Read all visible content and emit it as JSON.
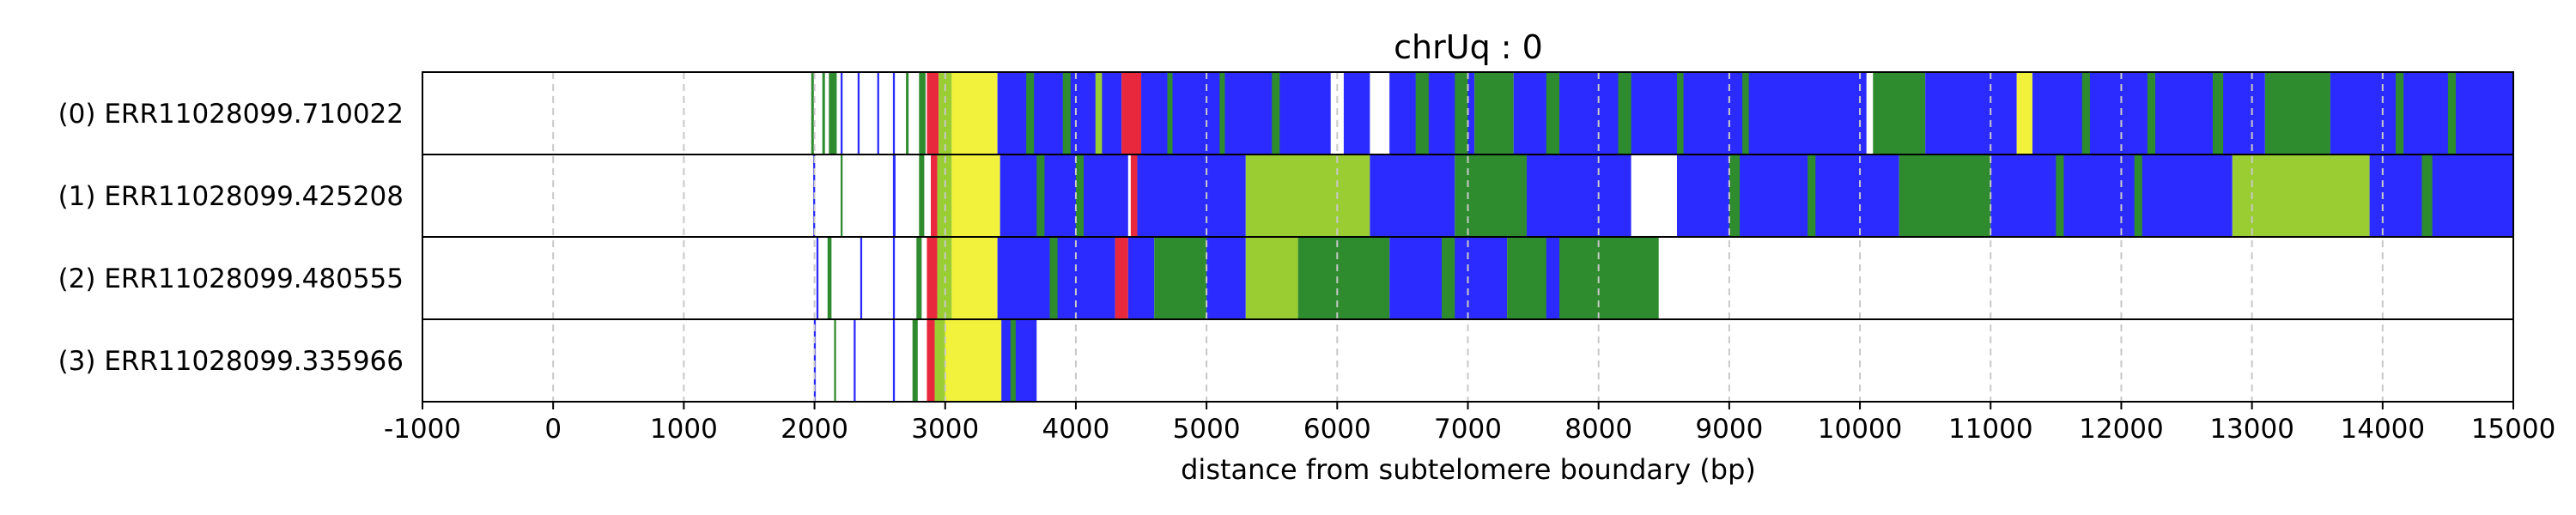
{
  "chart_data": {
    "type": "heatmap",
    "title": "chrUq : 0",
    "xlabel": "distance from subtelomere boundary (bp)",
    "xlim": [
      -1000,
      15000
    ],
    "xticks": [
      -1000,
      0,
      1000,
      2000,
      3000,
      4000,
      5000,
      6000,
      7000,
      8000,
      9000,
      10000,
      11000,
      12000,
      13000,
      14000,
      15000
    ],
    "xtick_labels": [
      "-1000",
      "0",
      "1000",
      "2000",
      "3000",
      "4000",
      "5000",
      "6000",
      "7000",
      "8000",
      "9000",
      "10000",
      "11000",
      "12000",
      "13000",
      "14000",
      "15000"
    ],
    "grid": "vertical dashed",
    "colors": {
      "blue": "#2b2bff",
      "green": "#2e8b2e",
      "yellow": "#f2f23c",
      "yellowgreen": "#9acd32",
      "red": "#e8283c",
      "white": "#ffffff",
      "grid": "#c8c8c8"
    },
    "rows": [
      {
        "label": "(0) ERR11028099.710022",
        "extent": [
          1970,
          15000
        ],
        "segments": [
          [
            1975,
            1995,
            "green"
          ],
          [
            2060,
            2080,
            "green"
          ],
          [
            2110,
            2170,
            "green"
          ],
          [
            2200,
            2215,
            "blue"
          ],
          [
            2330,
            2345,
            "blue"
          ],
          [
            2480,
            2495,
            "blue"
          ],
          [
            2600,
            2615,
            "blue"
          ],
          [
            2700,
            2720,
            "green"
          ],
          [
            2800,
            2850,
            "green"
          ],
          [
            2860,
            2950,
            "red"
          ],
          [
            2950,
            3050,
            "yellowgreen"
          ],
          [
            3050,
            3400,
            "yellow"
          ],
          [
            3400,
            4350,
            "blue"
          ],
          [
            3620,
            3680,
            "green"
          ],
          [
            3900,
            3960,
            "green"
          ],
          [
            4150,
            4200,
            "yellowgreen"
          ],
          [
            4350,
            4500,
            "red"
          ],
          [
            4500,
            5950,
            "blue"
          ],
          [
            4700,
            4740,
            "green"
          ],
          [
            5100,
            5140,
            "green"
          ],
          [
            5500,
            5560,
            "green"
          ],
          [
            6050,
            6250,
            "blue"
          ],
          [
            6400,
            7050,
            "blue"
          ],
          [
            6600,
            6700,
            "green"
          ],
          [
            6900,
            7000,
            "green"
          ],
          [
            7050,
            7350,
            "green"
          ],
          [
            7350,
            10050,
            "blue"
          ],
          [
            7600,
            7700,
            "green"
          ],
          [
            8150,
            8250,
            "green"
          ],
          [
            8600,
            8650,
            "green"
          ],
          [
            9100,
            9150,
            "green"
          ],
          [
            10100,
            10500,
            "green"
          ],
          [
            10500,
            11200,
            "blue"
          ],
          [
            11200,
            11320,
            "yellow"
          ],
          [
            11320,
            13100,
            "blue"
          ],
          [
            11700,
            11760,
            "green"
          ],
          [
            12200,
            12260,
            "green"
          ],
          [
            12700,
            12780,
            "green"
          ],
          [
            13100,
            13600,
            "green"
          ],
          [
            13600,
            15000,
            "blue"
          ],
          [
            14100,
            14160,
            "green"
          ],
          [
            14500,
            14560,
            "green"
          ]
        ]
      },
      {
        "label": "(1) ERR11028099.425208",
        "extent": [
          1980,
          15000
        ],
        "segments": [
          [
            1990,
            2005,
            "blue"
          ],
          [
            2200,
            2215,
            "green"
          ],
          [
            2600,
            2620,
            "blue"
          ],
          [
            2800,
            2840,
            "green"
          ],
          [
            2890,
            2940,
            "red"
          ],
          [
            2940,
            3050,
            "yellowgreen"
          ],
          [
            3050,
            3420,
            "yellow"
          ],
          [
            3420,
            4400,
            "blue"
          ],
          [
            3700,
            3760,
            "green"
          ],
          [
            4000,
            4060,
            "green"
          ],
          [
            4420,
            4470,
            "red"
          ],
          [
            4470,
            5300,
            "blue"
          ],
          [
            5300,
            6250,
            "yellowgreen"
          ],
          [
            6250,
            6900,
            "blue"
          ],
          [
            6900,
            7450,
            "green"
          ],
          [
            7450,
            8250,
            "blue"
          ],
          [
            8250,
            8600,
            "white"
          ],
          [
            8600,
            10300,
            "blue"
          ],
          [
            9000,
            9080,
            "green"
          ],
          [
            9600,
            9660,
            "green"
          ],
          [
            10300,
            11000,
            "green"
          ],
          [
            11000,
            12850,
            "blue"
          ],
          [
            11500,
            11560,
            "green"
          ],
          [
            12100,
            12160,
            "green"
          ],
          [
            12850,
            13900,
            "yellowgreen"
          ],
          [
            13900,
            15000,
            "blue"
          ],
          [
            14300,
            14380,
            "green"
          ]
        ]
      },
      {
        "label": "(2) ERR11028099.480555",
        "extent": [
          2010,
          8460
        ],
        "segments": [
          [
            2015,
            2030,
            "blue"
          ],
          [
            2100,
            2130,
            "green"
          ],
          [
            2350,
            2365,
            "blue"
          ],
          [
            2600,
            2615,
            "blue"
          ],
          [
            2780,
            2820,
            "green"
          ],
          [
            2860,
            2940,
            "red"
          ],
          [
            2940,
            3050,
            "yellowgreen"
          ],
          [
            3050,
            3400,
            "yellow"
          ],
          [
            3400,
            4300,
            "blue"
          ],
          [
            3800,
            3860,
            "green"
          ],
          [
            4300,
            4400,
            "red"
          ],
          [
            4400,
            4600,
            "blue"
          ],
          [
            4600,
            5000,
            "green"
          ],
          [
            5000,
            5300,
            "blue"
          ],
          [
            5300,
            5700,
            "yellowgreen"
          ],
          [
            5700,
            6400,
            "green"
          ],
          [
            6400,
            7300,
            "blue"
          ],
          [
            6800,
            6900,
            "green"
          ],
          [
            7300,
            8460,
            "green"
          ],
          [
            7600,
            7700,
            "blue"
          ]
        ]
      },
      {
        "label": "(3) ERR11028099.335966",
        "extent": [
          1990,
          3700
        ],
        "segments": [
          [
            1995,
            2010,
            "blue"
          ],
          [
            2150,
            2165,
            "green"
          ],
          [
            2300,
            2315,
            "blue"
          ],
          [
            2600,
            2615,
            "blue"
          ],
          [
            2750,
            2790,
            "green"
          ],
          [
            2860,
            2920,
            "red"
          ],
          [
            2920,
            3000,
            "yellowgreen"
          ],
          [
            3000,
            3430,
            "yellow"
          ],
          [
            3430,
            3700,
            "blue"
          ],
          [
            3500,
            3540,
            "green"
          ]
        ]
      }
    ]
  }
}
